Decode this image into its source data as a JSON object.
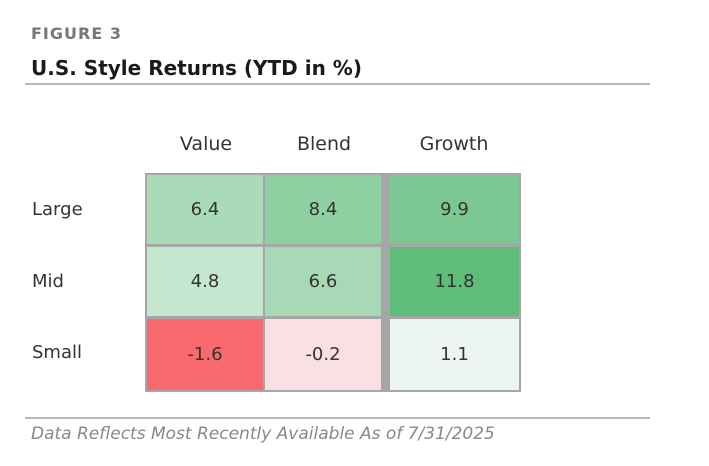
{
  "figure_label": "FIGURE 3",
  "title": "U.S. Style Returns (YTD in %)",
  "footnote": "Data Reflects Most Recently Available As of 7/31/2025",
  "chart_data": {
    "type": "heatmap",
    "title": "U.S. Style Returns (YTD in %)",
    "columns": [
      "Value",
      "Blend",
      "Growth"
    ],
    "rows": [
      "Large",
      "Mid",
      "Small"
    ],
    "values": [
      [
        6.4,
        8.4,
        9.9
      ],
      [
        4.8,
        6.6,
        11.8
      ],
      [
        -1.6,
        -0.2,
        1.1
      ]
    ],
    "value_labels": [
      [
        "6.4",
        "8.4",
        "9.9"
      ],
      [
        "4.8",
        "6.6",
        "11.8"
      ],
      [
        "-1.6",
        "-0.2",
        "1.1"
      ]
    ],
    "colors": [
      [
        "#a9dbb9",
        "#8fd0a3",
        "#7cc892"
      ],
      [
        "#c5e6cf",
        "#a8d9b6",
        "#5fbd7a"
      ],
      [
        "#f86a6e",
        "#fae0e5",
        "#edf5f1"
      ]
    ]
  }
}
